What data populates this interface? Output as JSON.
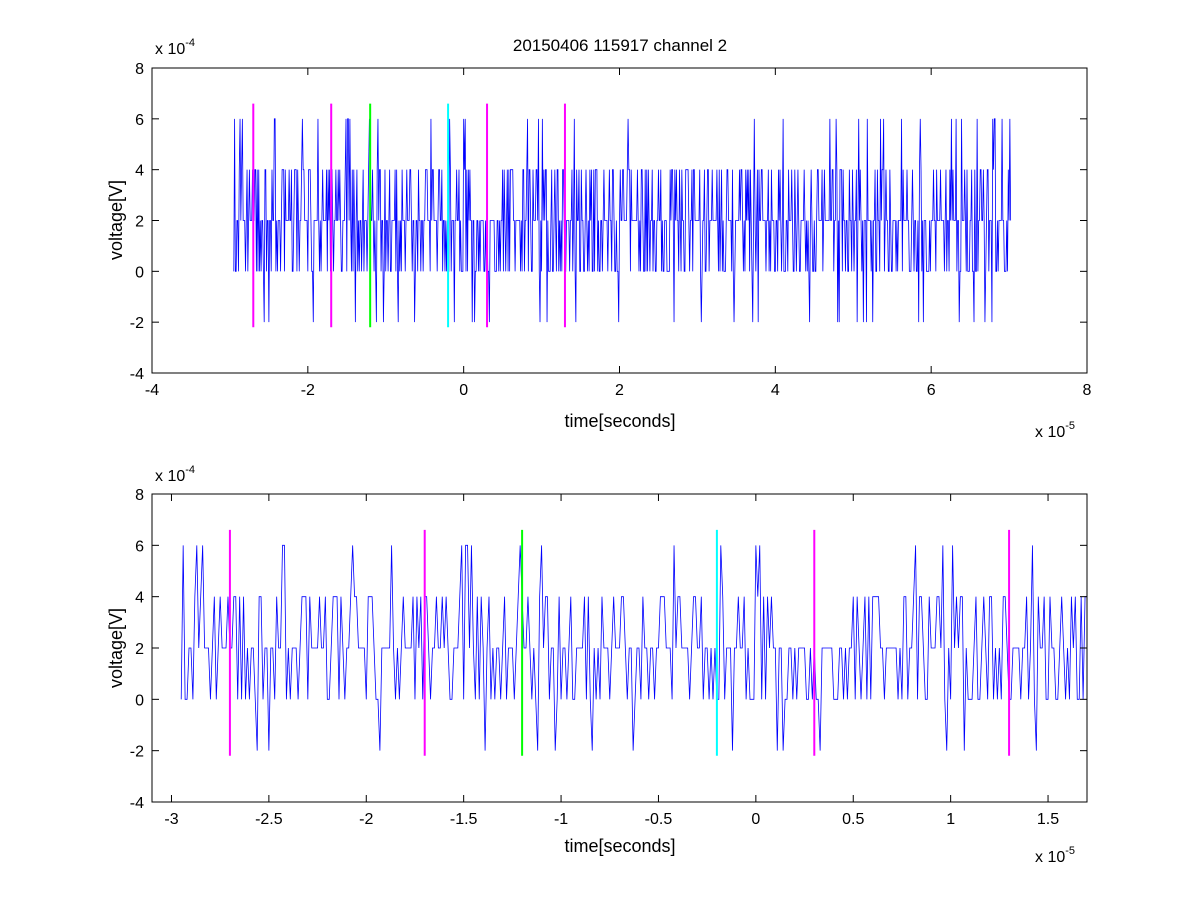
{
  "figure": {
    "title": "20150406 115917 channel 2"
  },
  "chart_data": [
    {
      "type": "line",
      "title": "20150406 115917 channel 2",
      "xlabel": "time[seconds]",
      "ylabel": "voltage[V]",
      "x_exponent_label": "x 10",
      "x_exponent": "-5",
      "y_exponent_label": "x 10",
      "y_exponent": "-4",
      "xlim": [
        -4e-05,
        8e-05
      ],
      "ylim": [
        -0.0004,
        0.0008
      ],
      "x_ticks": [
        -4e-05,
        -2e-05,
        0,
        2e-05,
        4e-05,
        6e-05,
        8e-05
      ],
      "x_tick_labels": [
        "-4",
        "-2",
        "0",
        "2",
        "4",
        "6",
        "8"
      ],
      "y_ticks": [
        -0.0004,
        -0.0002,
        0,
        0.0002,
        0.0004,
        0.0006,
        0.0008
      ],
      "y_tick_labels": [
        "-4",
        "-2",
        "0",
        "2",
        "4",
        "6",
        "8"
      ],
      "grid": false,
      "signal": {
        "color": "#0000ff",
        "x_start": -2.95e-05,
        "x_end": 7.02e-05,
        "sample_interval": 1e-07,
        "quantization_step": 0.0002,
        "baseline": 0.0002,
        "min": -0.0002,
        "max": 0.0006
      },
      "markers": [
        {
          "x": -2.7e-05,
          "color": "#ff00ff",
          "y_range": [
            -0.00022,
            0.00066
          ]
        },
        {
          "x": -1.7e-05,
          "color": "#ff00ff",
          "y_range": [
            -0.00022,
            0.00066
          ]
        },
        {
          "x": -1.2e-05,
          "color": "#00ff00",
          "y_range": [
            -0.00022,
            0.00066
          ]
        },
        {
          "x": -2e-06,
          "color": "#00ffff",
          "y_range": [
            -0.00022,
            0.00066
          ]
        },
        {
          "x": 3e-06,
          "color": "#ff00ff",
          "y_range": [
            -0.00022,
            0.00066
          ]
        },
        {
          "x": 1.3e-05,
          "color": "#ff00ff",
          "y_range": [
            -0.00022,
            0.00066
          ]
        }
      ]
    },
    {
      "type": "line",
      "title": "",
      "xlabel": "time[seconds]",
      "ylabel": "voltage[V]",
      "x_exponent_label": "x 10",
      "x_exponent": "-5",
      "y_exponent_label": "x 10",
      "y_exponent": "-4",
      "xlim": [
        -3.1e-05,
        1.7e-05
      ],
      "ylim": [
        -0.0004,
        0.0008
      ],
      "x_ticks": [
        -3e-05,
        -2.5e-05,
        -2e-05,
        -1.5e-05,
        -1e-05,
        -5e-06,
        0,
        5e-06,
        1e-05,
        1.5e-05
      ],
      "x_tick_labels": [
        "-3",
        "-2.5",
        "-2",
        "-1.5",
        "-1",
        "-0.5",
        "0",
        "0.5",
        "1",
        "1.5"
      ],
      "y_ticks": [
        -0.0004,
        -0.0002,
        0,
        0.0002,
        0.0004,
        0.0006,
        0.0008
      ],
      "y_tick_labels": [
        "-4",
        "-2",
        "0",
        "2",
        "4",
        "6",
        "8"
      ],
      "grid": false,
      "signal": {
        "color": "#0000ff",
        "x_start": -2.95e-05,
        "x_end": 1.7e-05,
        "sample_interval": 1e-07,
        "quantization_step": 0.0002,
        "baseline": 0.0002,
        "min": -0.0002,
        "max": 0.0006
      },
      "markers": [
        {
          "x": -2.7e-05,
          "color": "#ff00ff",
          "y_range": [
            -0.00022,
            0.00066
          ]
        },
        {
          "x": -1.7e-05,
          "color": "#ff00ff",
          "y_range": [
            -0.00022,
            0.00066
          ]
        },
        {
          "x": -1.2e-05,
          "color": "#00ff00",
          "y_range": [
            -0.00022,
            0.00066
          ]
        },
        {
          "x": -2e-06,
          "color": "#00ffff",
          "y_range": [
            -0.00022,
            0.00066
          ]
        },
        {
          "x": 3e-06,
          "color": "#ff00ff",
          "y_range": [
            -0.00022,
            0.00066
          ]
        },
        {
          "x": 1.3e-05,
          "color": "#ff00ff",
          "y_range": [
            -0.00022,
            0.00066
          ]
        }
      ]
    }
  ]
}
